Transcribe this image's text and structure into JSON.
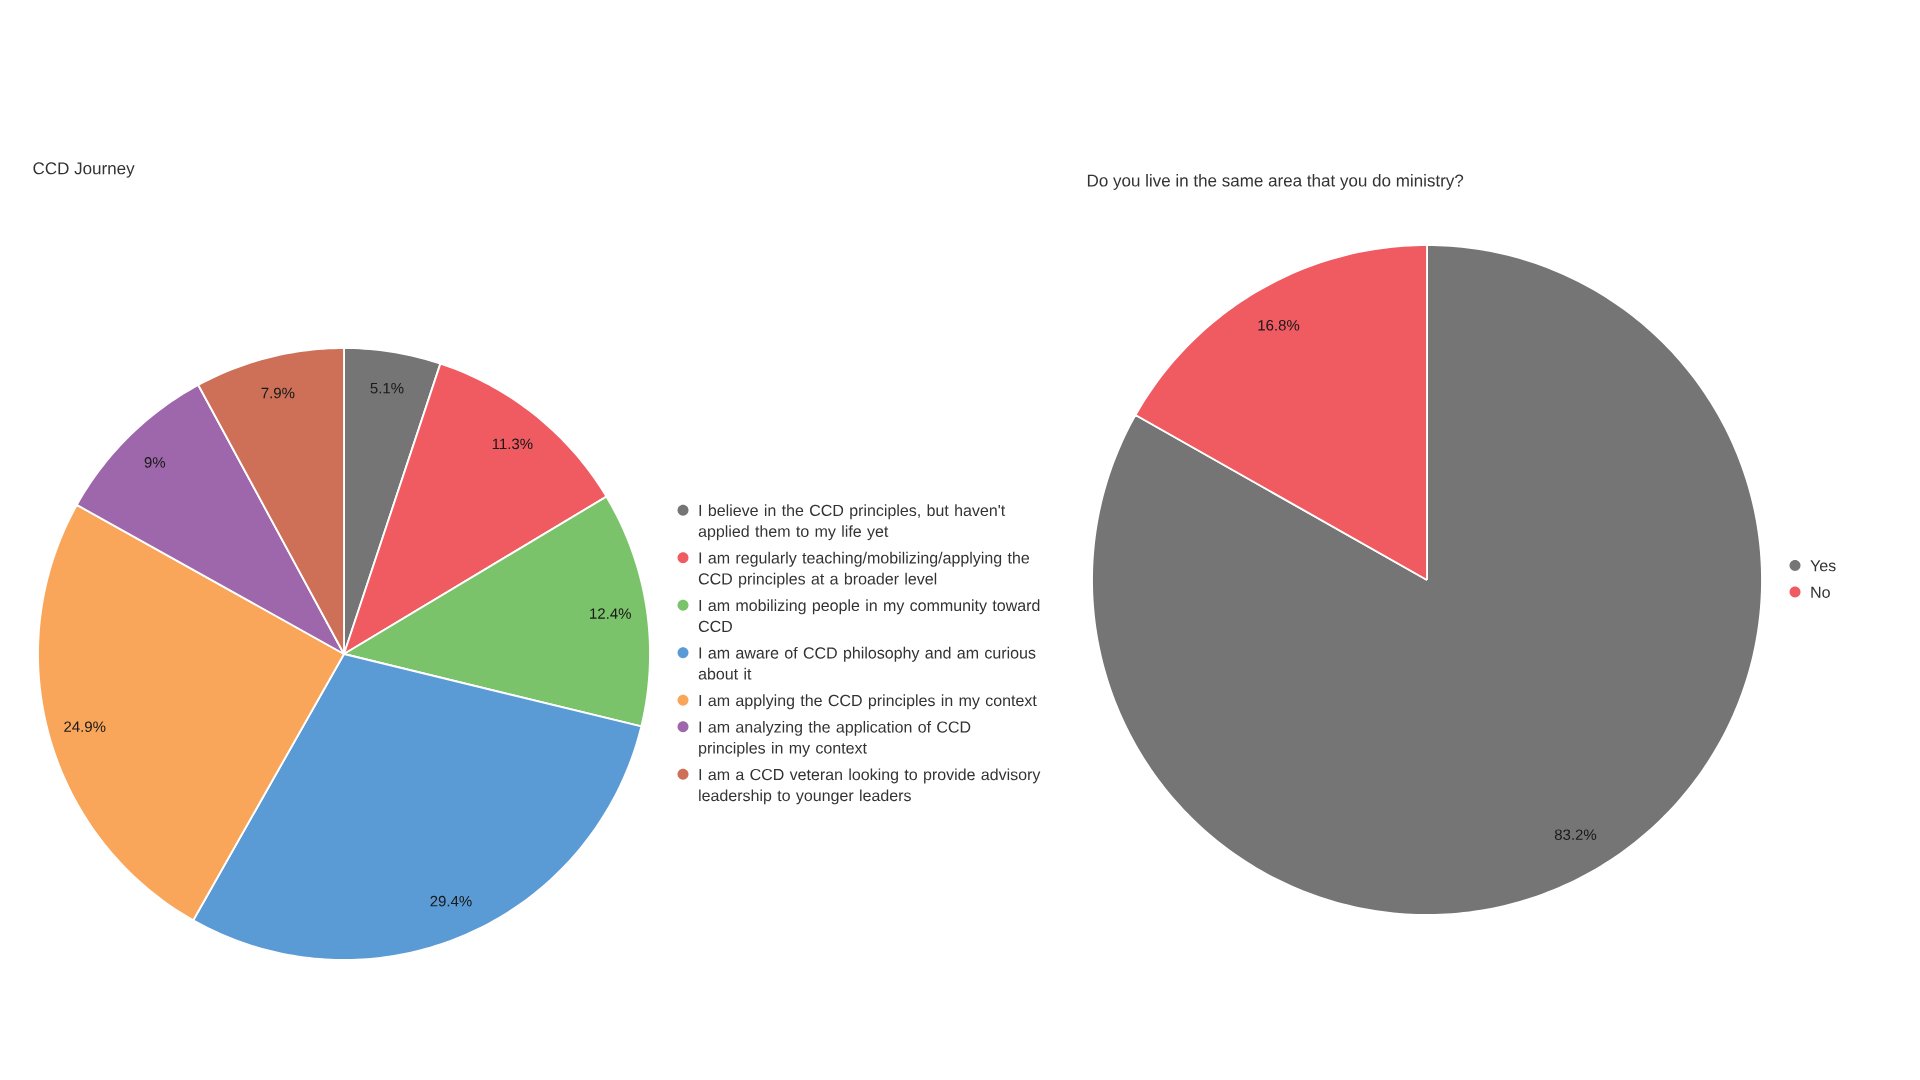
{
  "chart_data": [
    {
      "type": "pie",
      "title": "CCD Journey",
      "categories": [
        "I believe in the CCD principles, but haven't applied them to my life yet",
        "I am regularly teaching/mobilizing/applying the CCD principles at a broader level",
        "I am mobilizing people in my community toward CCD",
        "I am aware of CCD philosophy and am curious about it",
        "I am applying the CCD principles in my context",
        "I am analyzing the application of CCD principles in my context",
        "I am a CCD veteran looking to provide advisory leadership to younger leaders"
      ],
      "values": [
        5.1,
        11.3,
        12.4,
        29.4,
        24.9,
        9,
        7.9
      ],
      "colors": [
        "#757575",
        "#f05a61",
        "#7bc36a",
        "#5b9bd5",
        "#f9a65a",
        "#9e67ab",
        "#ce7058"
      ],
      "value_labels": [
        "5.1%",
        "11.3%",
        "12.4%",
        "29.4%",
        "24.9%",
        "9%",
        "7.9%"
      ],
      "legend": "right"
    },
    {
      "type": "pie",
      "title": "Do you live in the same area that you do ministry?",
      "categories": [
        "Yes",
        "No"
      ],
      "values": [
        83.2,
        16.8
      ],
      "colors": [
        "#757575",
        "#f05a61"
      ],
      "value_labels": [
        "83.2%",
        "16.8%"
      ],
      "legend": "right"
    }
  ]
}
